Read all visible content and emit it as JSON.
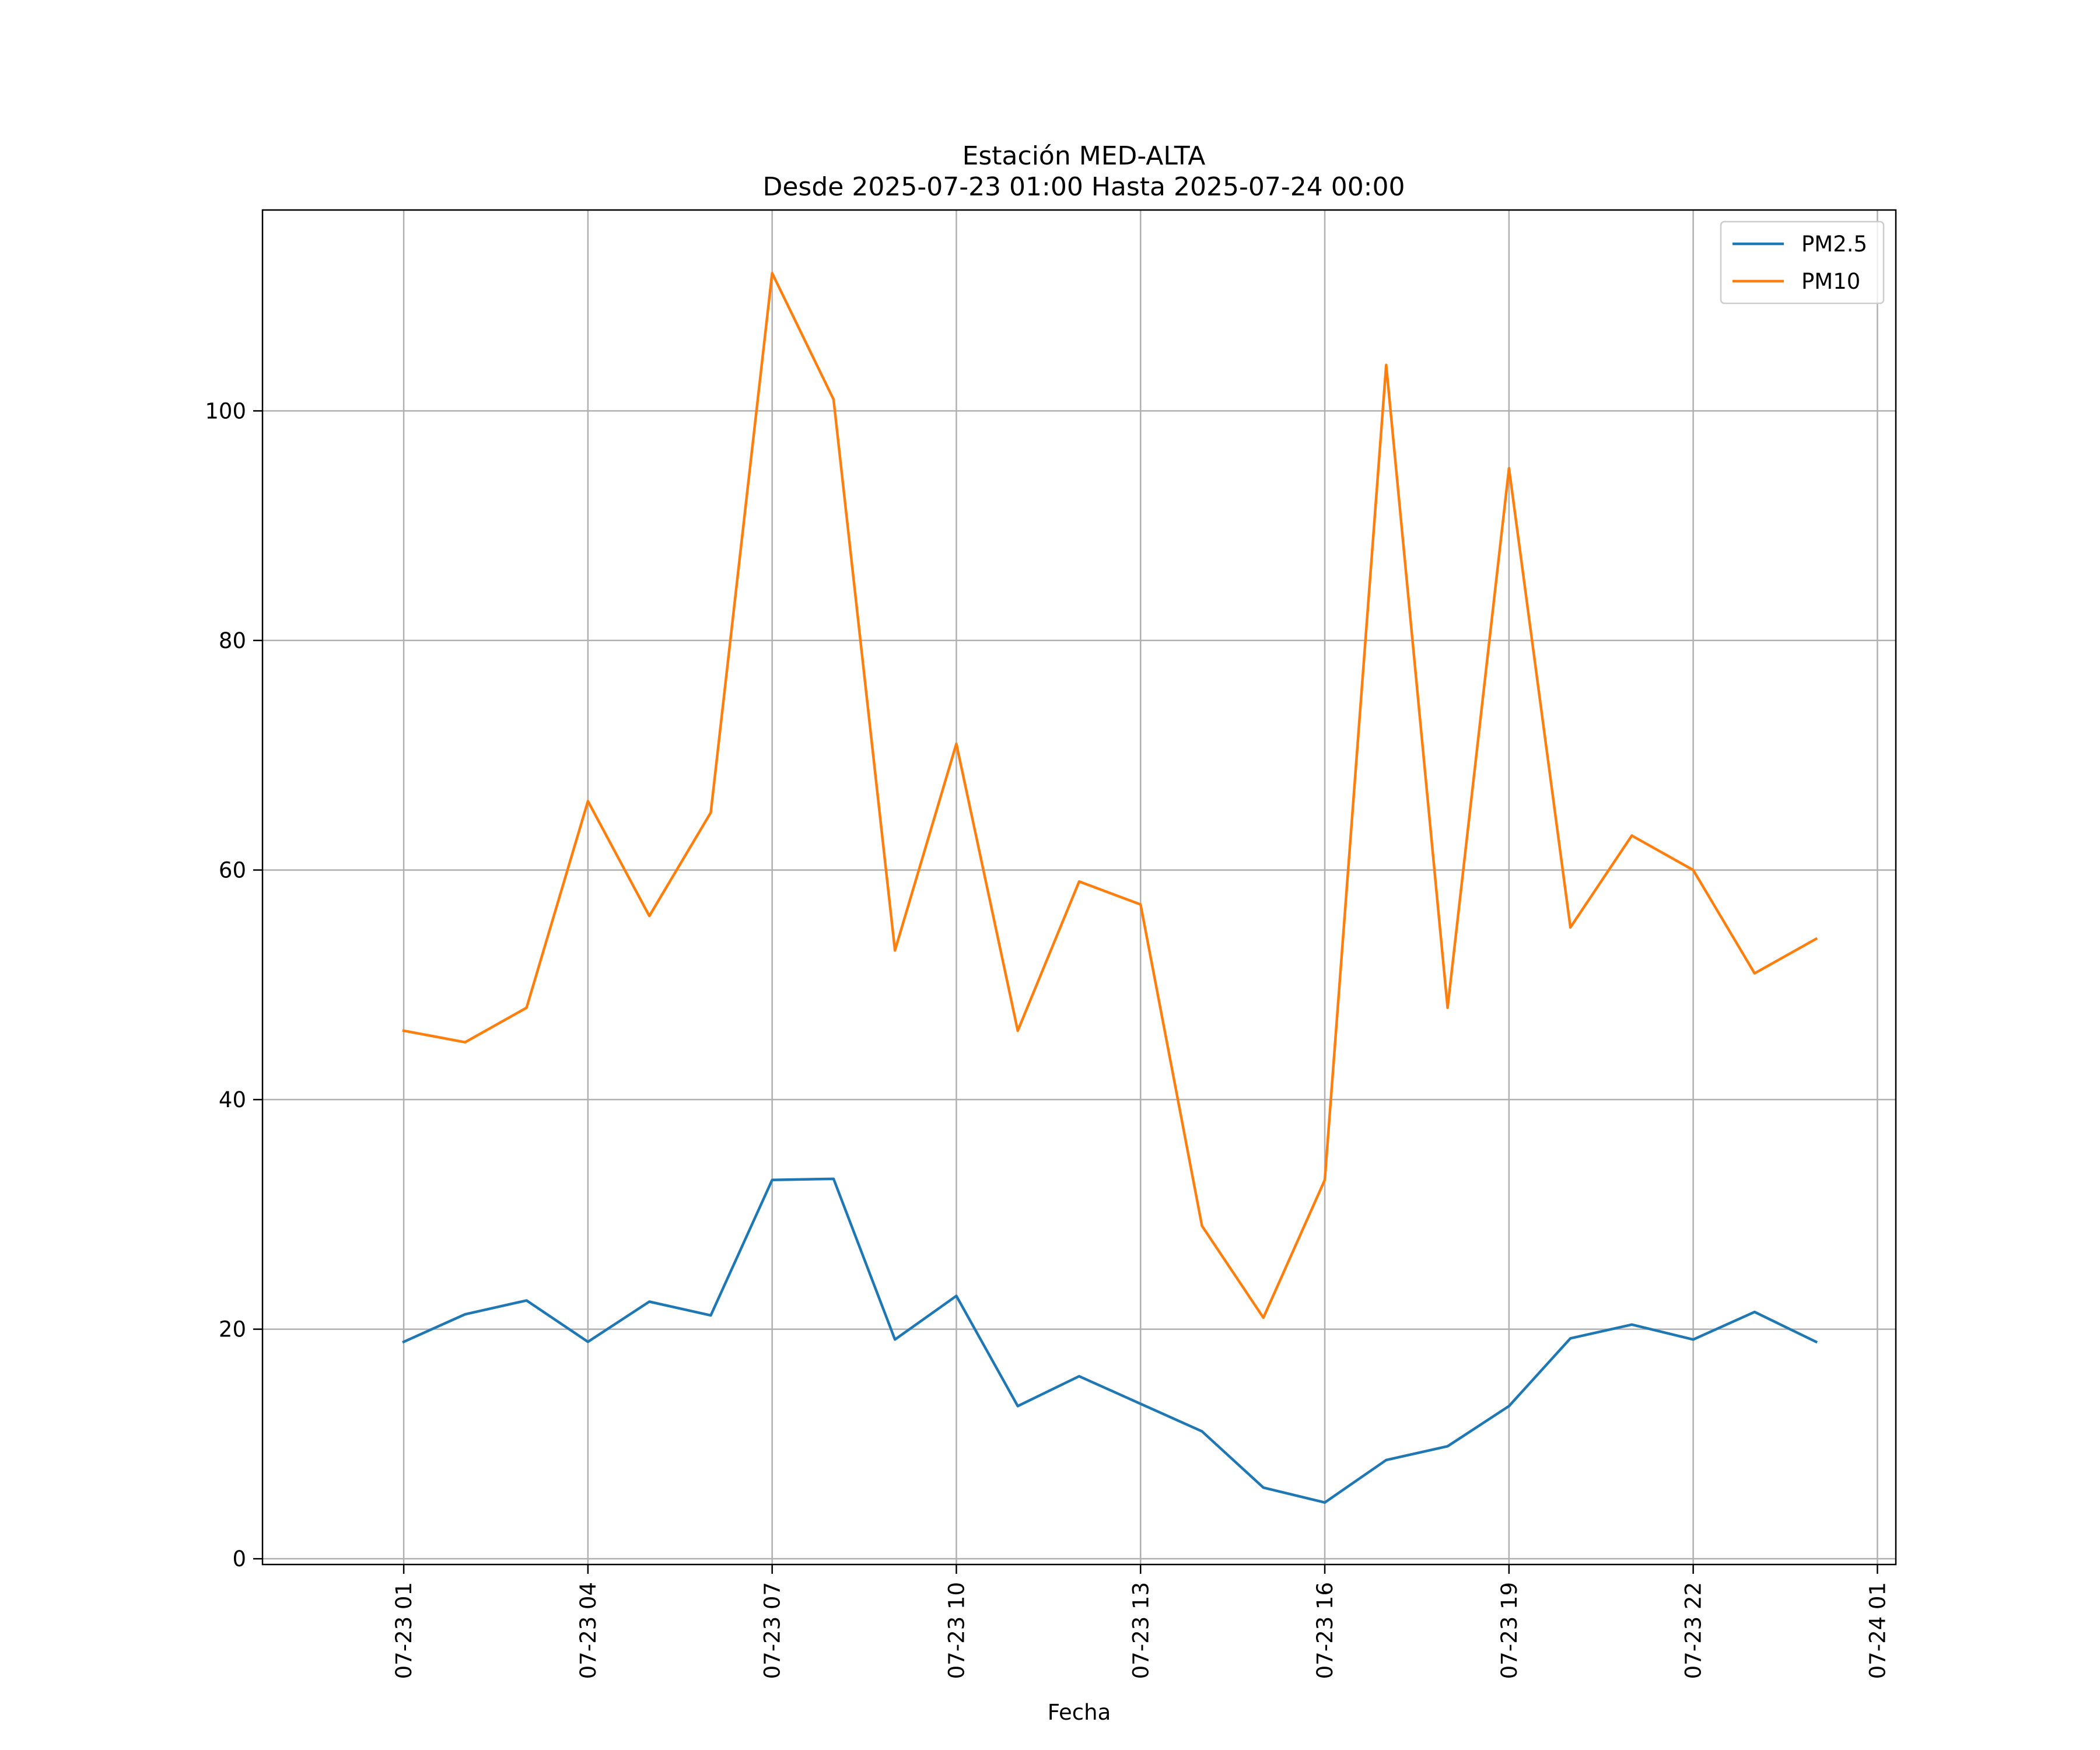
{
  "chart_data": {
    "type": "line",
    "title": "Estación MED-ALTA",
    "subtitle": "Desde 2025-07-23 01:00 Hasta 2025-07-24 00:00",
    "xlabel": "Fecha",
    "ylabel": "",
    "x": [
      "2025-07-23 01:00",
      "2025-07-23 02:00",
      "2025-07-23 03:00",
      "2025-07-23 04:00",
      "2025-07-23 05:00",
      "2025-07-23 06:00",
      "2025-07-23 07:00",
      "2025-07-23 08:00",
      "2025-07-23 09:00",
      "2025-07-23 10:00",
      "2025-07-23 11:00",
      "2025-07-23 12:00",
      "2025-07-23 13:00",
      "2025-07-23 14:00",
      "2025-07-23 15:00",
      "2025-07-23 16:00",
      "2025-07-23 17:00",
      "2025-07-23 18:00",
      "2025-07-23 19:00",
      "2025-07-23 20:00",
      "2025-07-23 21:00",
      "2025-07-23 22:00",
      "2025-07-23 23:00",
      "2025-07-24 00:00"
    ],
    "xlim": [
      "2025-07-22 22:42",
      "2025-07-24 01:18"
    ],
    "x_ticks": [
      "07-23 01",
      "07-23 04",
      "07-23 07",
      "07-23 10",
      "07-23 13",
      "07-23 16",
      "07-23 19",
      "07-23 22",
      "07-24 01"
    ],
    "y_ticks": [
      0,
      20,
      40,
      60,
      80,
      100
    ],
    "ylim": [
      -0.5,
      117.5
    ],
    "grid": true,
    "legend_position": "top-right",
    "series": [
      {
        "name": "PM2.5",
        "color": "#1f77b4",
        "values": [
          18.9,
          21.3,
          22.5,
          18.9,
          22.4,
          21.2,
          33.0,
          33.1,
          19.1,
          22.9,
          13.3,
          15.9,
          13.5,
          11.1,
          6.2,
          4.9,
          8.6,
          9.8,
          13.3,
          19.2,
          20.4,
          19.1,
          21.5,
          18.9
        ]
      },
      {
        "name": "PM10",
        "color": "#ff7f0e",
        "values": [
          46,
          45,
          48,
          66,
          56,
          65,
          112,
          101,
          53,
          71,
          46,
          59,
          57,
          29,
          21,
          33,
          104,
          48,
          95,
          55,
          63,
          60,
          51,
          54
        ]
      }
    ]
  }
}
